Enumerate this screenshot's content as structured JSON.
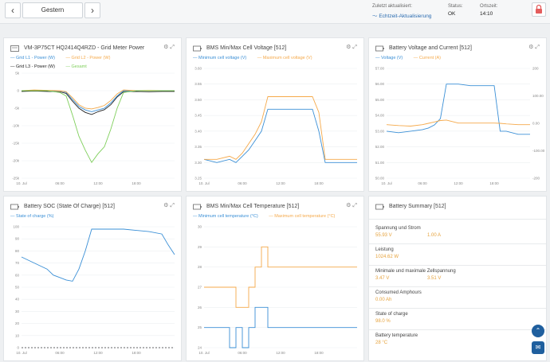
{
  "header": {
    "prev_icon": "chevron-left-icon",
    "next_icon": "chevron-right-icon",
    "date_label": "Gestern",
    "last_update_label": "Zuletzt aktualisiert:",
    "realtime_label": "Echtzeit-Aktualisierung",
    "status_label": "Status:",
    "status_value": "OK",
    "localtime_label": "Ortszeit:",
    "localtime_value": "14:10",
    "lock_icon": "lock-icon"
  },
  "colors": {
    "blue": "#3a8fd6",
    "orange": "#f5a94a",
    "black": "#222222",
    "green": "#7fcf5b",
    "accent": "#1f5f9e"
  },
  "panels": {
    "grid_meter": {
      "title": "VM-3P75CT HQ2414Q4RZD - Grid Meter Power",
      "legend": [
        "Grid L1 - Power (W)",
        "Grid L2 - Power (W)",
        "Grid L3 - Power (W)",
        "Gesamt"
      ]
    },
    "cell_voltage": {
      "title": "BMS Min/Max Cell Voltage [512]",
      "legend": [
        "Minimum cell voltage (V)",
        "Maximum cell voltage (V)"
      ]
    },
    "batt_vc": {
      "title": "Battery Voltage and Current [512]",
      "legend": [
        "Voltage (V)",
        "Current (A)"
      ]
    },
    "soc": {
      "title": "Battery SOC (State Of Charge) [512]",
      "legend": [
        "State of charge (%)"
      ]
    },
    "cell_temp": {
      "title": "BMS Min/Max Cell Temperature [512]",
      "legend": [
        "Minimum cell temperature (°C)",
        "Maximum cell temperature (°C)"
      ]
    },
    "summary": {
      "title": "Battery Summary [512]",
      "rows": [
        {
          "label": "Spannung und Strom",
          "values": [
            "55.93 V",
            "1.00 A"
          ]
        },
        {
          "label": "Leistung",
          "values": [
            "1024.62 W"
          ]
        },
        {
          "label": "Minimale und maximale Zellspannung",
          "values": [
            "3.47 V",
            "3.51 V"
          ]
        },
        {
          "label": "Consumed Amphours",
          "values": [
            "0.00 Ah"
          ]
        },
        {
          "label": "State of charge",
          "values": [
            "98.0 %"
          ]
        },
        {
          "label": "Battery temperature",
          "values": [
            "28 °C"
          ]
        }
      ]
    }
  },
  "chart_data": [
    {
      "type": "line",
      "title": "VM-3P75CT HQ2414Q4RZD - Grid Meter Power",
      "ylim": [
        -25000,
        5000
      ],
      "yticks": [
        "5k",
        "0",
        "-5k",
        "-10k",
        "-15k",
        "-20k",
        "-25k"
      ],
      "xticks": [
        "10. Jul",
        "06:00",
        "12:00",
        "18:00"
      ],
      "x": [
        0,
        2,
        4,
        6,
        7,
        8,
        9,
        10,
        11,
        12,
        13,
        14,
        15,
        16,
        18,
        20,
        22,
        24
      ],
      "series": [
        {
          "name": "Grid L1 - Power (W)",
          "values": [
            0,
            0,
            0,
            0,
            -500,
            -2500,
            -4500,
            -5500,
            -6000,
            -5500,
            -5000,
            -3500,
            -1500,
            0,
            0,
            0,
            0,
            0
          ]
        },
        {
          "name": "Grid L2 - Power (W)",
          "values": [
            0,
            200,
            100,
            0,
            -300,
            -2000,
            -4000,
            -5000,
            -5200,
            -4800,
            -4200,
            -2800,
            -900,
            200,
            0,
            100,
            0,
            0
          ]
        },
        {
          "name": "Grid L3 - Power (W)",
          "values": [
            -200,
            -100,
            -200,
            -300,
            -800,
            -3000,
            -5000,
            -6200,
            -6800,
            -6000,
            -5400,
            -4000,
            -1800,
            -300,
            -200,
            -300,
            -200,
            -200
          ]
        },
        {
          "name": "Gesamt",
          "values": [
            0,
            0,
            0,
            -500,
            -1500,
            -7000,
            -13000,
            -17000,
            -20500,
            -18000,
            -16000,
            -11000,
            -5000,
            -500,
            0,
            0,
            0,
            0
          ]
        }
      ]
    },
    {
      "type": "line",
      "title": "BMS Min/Max Cell Voltage [512]",
      "ylim": [
        3.25,
        3.6
      ],
      "yticks": [
        "3.60",
        "3.55",
        "3.50",
        "3.45",
        "3.40",
        "3.35",
        "3.30",
        "3.25"
      ],
      "xticks": [
        "10. Jul",
        "06:00",
        "12:00",
        "18:00"
      ],
      "x": [
        0,
        2,
        4,
        5,
        6,
        7,
        8,
        9,
        10,
        12,
        14,
        16,
        17,
        18,
        19,
        20,
        22,
        24
      ],
      "series": [
        {
          "name": "Minimum cell voltage (V)",
          "values": [
            3.31,
            3.3,
            3.31,
            3.3,
            3.32,
            3.34,
            3.37,
            3.4,
            3.47,
            3.47,
            3.47,
            3.47,
            3.47,
            3.4,
            3.3,
            3.3,
            3.3,
            3.3
          ]
        },
        {
          "name": "Maximum cell voltage (V)",
          "values": [
            3.31,
            3.31,
            3.32,
            3.31,
            3.33,
            3.36,
            3.39,
            3.43,
            3.51,
            3.51,
            3.51,
            3.51,
            3.51,
            3.46,
            3.31,
            3.31,
            3.31,
            3.31
          ]
        }
      ]
    },
    {
      "type": "line",
      "title": "Battery Voltage and Current [512]",
      "ylim": [
        50,
        57
      ],
      "y2lim": [
        -200,
        200
      ],
      "yticks": [
        "57.00",
        "56.00",
        "55.00",
        "54.00",
        "53.00",
        "52.00",
        "51.00",
        "50.00"
      ],
      "y2ticks": [
        "200",
        "100.00",
        "0.00",
        "-100.00",
        "-200"
      ],
      "xticks": [
        "10. Jul",
        "06:00",
        "12:00",
        "18:00"
      ],
      "x": [
        0,
        2,
        4,
        6,
        7,
        8,
        9,
        10,
        12,
        14,
        16,
        18,
        19,
        20,
        22,
        24
      ],
      "series": [
        {
          "name": "Voltage (V)",
          "values": [
            53.0,
            52.9,
            53.0,
            53.1,
            53.2,
            53.4,
            53.8,
            56.0,
            56.0,
            55.9,
            55.9,
            55.9,
            53.0,
            53.0,
            52.8,
            52.8
          ]
        },
        {
          "name": "Current (A)",
          "values": [
            -5,
            -8,
            -10,
            -5,
            0,
            5,
            10,
            12,
            1,
            1,
            1,
            1,
            0,
            -2,
            -5,
            -5
          ]
        }
      ]
    },
    {
      "type": "line",
      "title": "Battery SOC (State Of Charge) [512]",
      "ylim": [
        0,
        100
      ],
      "yticks": [
        "100",
        "90",
        "80",
        "70",
        "60",
        "50",
        "40",
        "30",
        "20",
        "10",
        "0"
      ],
      "xticks": [
        "10. Jul",
        "06:00",
        "12:00",
        "18:00"
      ],
      "x": [
        0,
        2,
        4,
        5,
        6,
        7,
        8,
        9,
        10,
        11,
        12,
        14,
        16,
        18,
        20,
        22,
        23,
        24
      ],
      "series": [
        {
          "name": "State of charge (%)",
          "values": [
            75,
            70,
            65,
            60,
            58,
            56,
            55,
            65,
            80,
            98,
            98,
            98,
            98,
            97,
            96,
            94,
            85,
            77
          ]
        }
      ]
    },
    {
      "type": "line",
      "title": "BMS Min/Max Cell Temperature [512]",
      "ylim": [
        24,
        30
      ],
      "yticks": [
        "30",
        "29",
        "28",
        "27",
        "26",
        "25",
        "24"
      ],
      "xticks": [
        "10. Jul",
        "06:00",
        "12:00",
        "18:00"
      ],
      "x": [
        0,
        2,
        4,
        5,
        6,
        7,
        8,
        9,
        10,
        11,
        12,
        14,
        16,
        18,
        20,
        22,
        24
      ],
      "series": [
        {
          "name": "Minimum cell temperature (°C)",
          "values": [
            25,
            25,
            24,
            25,
            24,
            25,
            26,
            26,
            25,
            25,
            25,
            25,
            25,
            25,
            25,
            25,
            25
          ]
        },
        {
          "name": "Maximum cell temperature (°C)",
          "values": [
            27,
            27,
            27,
            26,
            26,
            27,
            28,
            29,
            28,
            28,
            28,
            28,
            28,
            28,
            28,
            28,
            28
          ]
        }
      ]
    }
  ]
}
